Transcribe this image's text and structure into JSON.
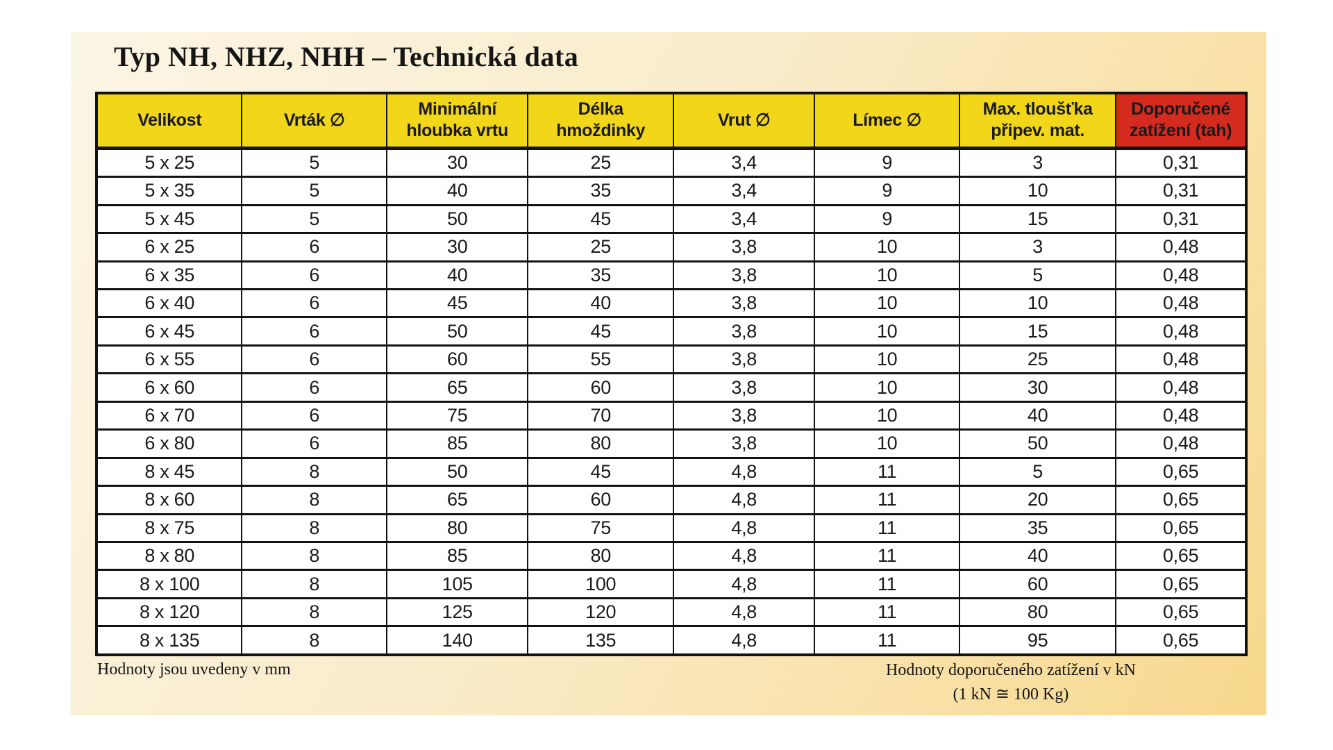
{
  "page": {
    "title": "Typ NH, NHZ, NHH – Technická data"
  },
  "colors": {
    "header_yellow": "#F1D619",
    "header_red": "#D52A1E",
    "panel_gradient_start": "#FBF5E4",
    "panel_gradient_end": "#F8D88D",
    "border_black": "#121212"
  },
  "table": {
    "headers": [
      {
        "label": "Velikost",
        "accent": false
      },
      {
        "label": "Vrták ∅",
        "accent": false
      },
      {
        "label": "Minimální\nhloubka vrtu",
        "accent": false
      },
      {
        "label": "Délka\nhmoždinky",
        "accent": false
      },
      {
        "label": "Vrut ∅",
        "accent": false
      },
      {
        "label": "Límec ∅",
        "accent": false
      },
      {
        "label": "Max. tloušťka\npřipev. mat.",
        "accent": false
      },
      {
        "label": "Doporučené\nzatížení (tah)",
        "accent": true
      }
    ],
    "rows": [
      [
        "5 x 25",
        "5",
        "30",
        "25",
        "3,4",
        "9",
        "3",
        "0,31"
      ],
      [
        "5 x 35",
        "5",
        "40",
        "35",
        "3,4",
        "9",
        "10",
        "0,31"
      ],
      [
        "5 x 45",
        "5",
        "50",
        "45",
        "3,4",
        "9",
        "15",
        "0,31"
      ],
      [
        "6 x 25",
        "6",
        "30",
        "25",
        "3,8",
        "10",
        "3",
        "0,48"
      ],
      [
        "6 x 35",
        "6",
        "40",
        "35",
        "3,8",
        "10",
        "5",
        "0,48"
      ],
      [
        "6 x 40",
        "6",
        "45",
        "40",
        "3,8",
        "10",
        "10",
        "0,48"
      ],
      [
        "6 x 45",
        "6",
        "50",
        "45",
        "3,8",
        "10",
        "15",
        "0,48"
      ],
      [
        "6 x 55",
        "6",
        "60",
        "55",
        "3,8",
        "10",
        "25",
        "0,48"
      ],
      [
        "6 x 60",
        "6",
        "65",
        "60",
        "3,8",
        "10",
        "30",
        "0,48"
      ],
      [
        "6 x 70",
        "6",
        "75",
        "70",
        "3,8",
        "10",
        "40",
        "0,48"
      ],
      [
        "6 x 80",
        "6",
        "85",
        "80",
        "3,8",
        "10",
        "50",
        "0,48"
      ],
      [
        "8 x 45",
        "8",
        "50",
        "45",
        "4,8",
        "11",
        "5",
        "0,65"
      ],
      [
        "8 x 60",
        "8",
        "65",
        "60",
        "4,8",
        "11",
        "20",
        "0,65"
      ],
      [
        "8 x 75",
        "8",
        "80",
        "75",
        "4,8",
        "11",
        "35",
        "0,65"
      ],
      [
        "8 x 80",
        "8",
        "85",
        "80",
        "4,8",
        "11",
        "40",
        "0,65"
      ],
      [
        "8 x 100",
        "8",
        "105",
        "100",
        "4,8",
        "11",
        "60",
        "0,65"
      ],
      [
        "8 x 120",
        "8",
        "125",
        "120",
        "4,8",
        "11",
        "80",
        "0,65"
      ],
      [
        "8 x 135",
        "8",
        "140",
        "135",
        "4,8",
        "11",
        "95",
        "0,65"
      ]
    ]
  },
  "footer": {
    "left_note": "Hodnoty jsou uvedeny v mm",
    "right_note_line1": "Hodnoty doporučeného zatížení v kN",
    "right_note_line2": "(1 kN ≅ 100 Kg)"
  }
}
